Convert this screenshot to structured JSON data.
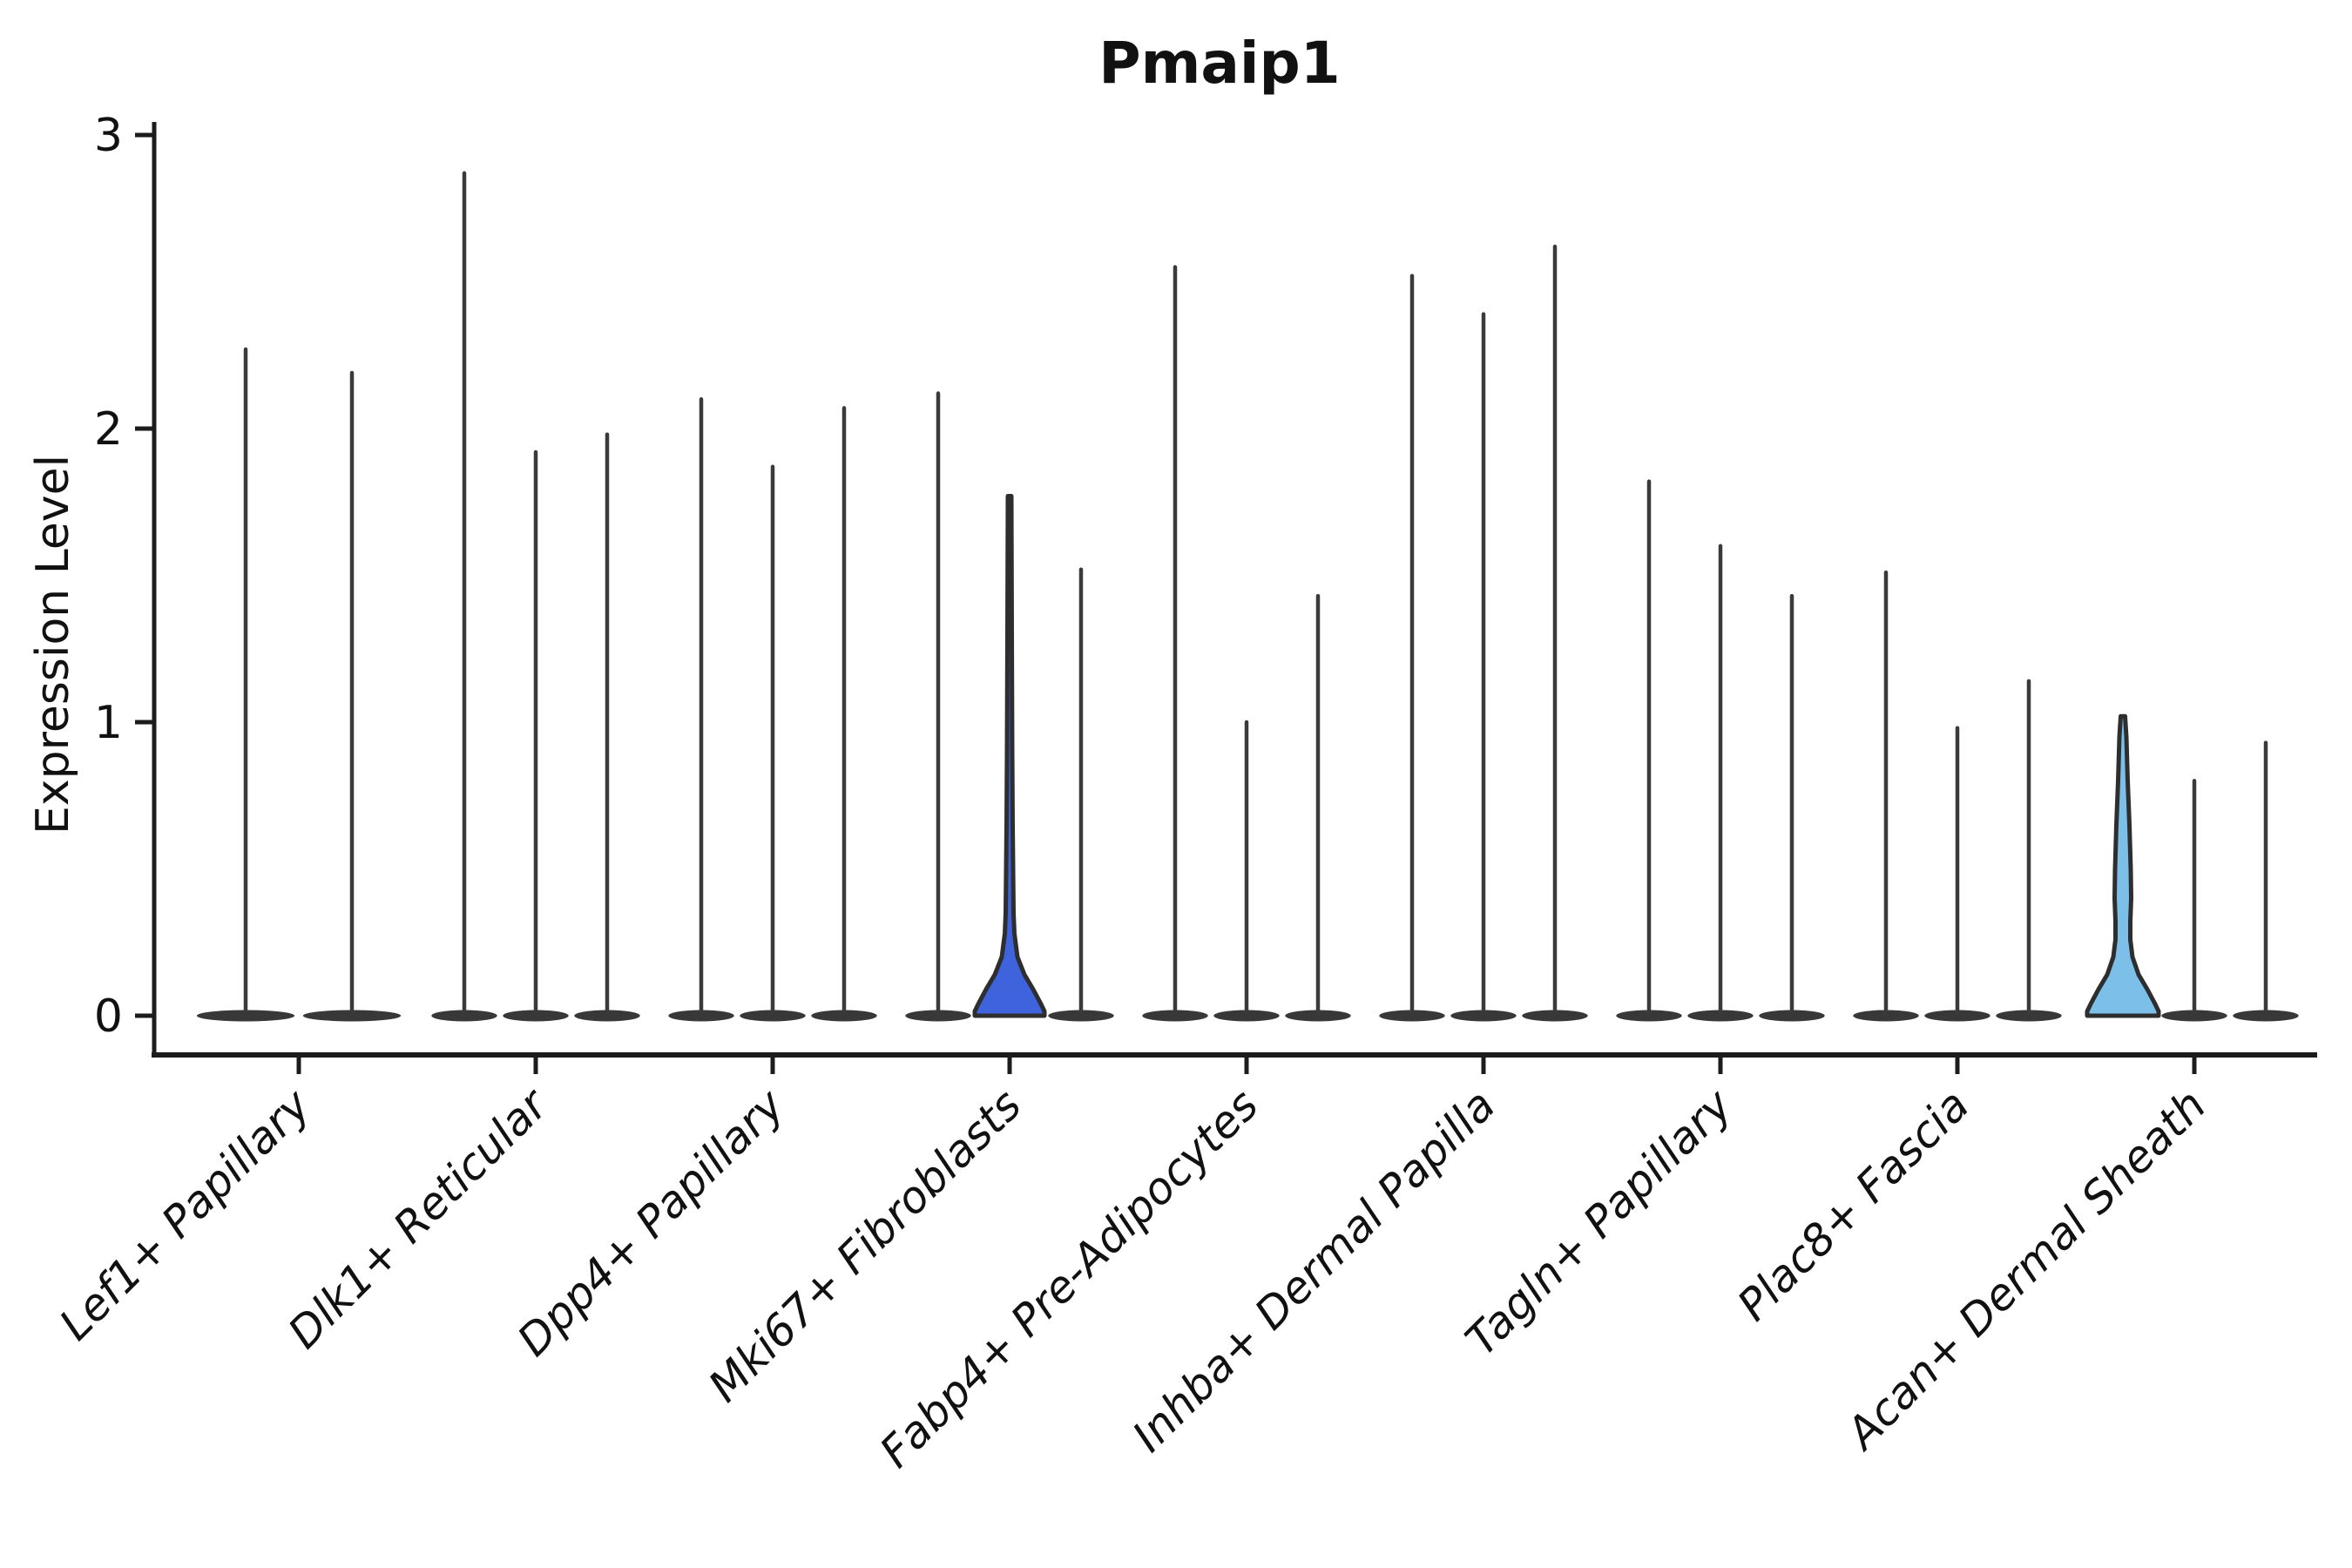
{
  "chart_data": {
    "type": "violin",
    "title": "Pmaip1",
    "xlabel": "",
    "ylabel": "Expression Level",
    "ylim": [
      0,
      3
    ],
    "yticks": [
      0,
      1,
      2,
      3
    ],
    "grid": false,
    "legend": "none",
    "categories": [
      "Lef1+ Papillary",
      "Dlk1+ Reticular",
      "Dpp4+ Papillary",
      "Mki67+ Fibroblasts",
      "Fabp4+ Pre-Adipocytes",
      "Inhba+ Dermal Papilla",
      "Tagln+ Papillary",
      "Plac8+ Fascia",
      "Acan+ Dermal Sheath"
    ],
    "groups": [
      {
        "label": "Lef1+ Papillary",
        "violins": [
          {
            "max": 2.27
          },
          {
            "max": 2.19
          }
        ]
      },
      {
        "label": "Dlk1+ Reticular",
        "violins": [
          {
            "max": 2.87
          },
          {
            "max": 1.92
          },
          {
            "max": 1.98
          }
        ]
      },
      {
        "label": "Dpp4+ Papillary",
        "violins": [
          {
            "max": 2.1
          },
          {
            "max": 1.87
          },
          {
            "max": 2.07
          }
        ]
      },
      {
        "label": "Mki67+ Fibroblasts",
        "violins": [
          {
            "max": 2.12
          },
          {
            "max": 1.77,
            "fill": "#3E63DC",
            "profile": [
              [
                1.77,
                2
              ],
              [
                1.3,
                2.5
              ],
              [
                0.9,
                3
              ],
              [
                0.65,
                3.5
              ],
              [
                0.5,
                4
              ],
              [
                0.35,
                4.5
              ],
              [
                0.28,
                5.5
              ],
              [
                0.2,
                9
              ],
              [
                0.14,
                17
              ],
              [
                0.09,
                27
              ],
              [
                0.04,
                36
              ],
              [
                0.015,
                40
              ],
              [
                0,
                40
              ]
            ]
          },
          {
            "max": 1.52
          }
        ]
      },
      {
        "label": "Fabp4+ Pre-Adipocytes",
        "violins": [
          {
            "max": 2.55
          },
          {
            "max": 1.0
          },
          {
            "max": 1.43
          }
        ]
      },
      {
        "label": "Inhba+ Dermal Papilla",
        "violins": [
          {
            "max": 2.52
          },
          {
            "max": 2.39
          },
          {
            "max": 2.62
          }
        ]
      },
      {
        "label": "Tagln+ Papillary",
        "violins": [
          {
            "max": 1.82
          },
          {
            "max": 1.6
          },
          {
            "max": 1.43
          }
        ]
      },
      {
        "label": "Plac8+ Fascia",
        "violins": [
          {
            "max": 1.51
          },
          {
            "max": 0.98
          },
          {
            "max": 1.14
          }
        ]
      },
      {
        "label": "Acan+ Dermal Sheath",
        "violins": [
          {
            "max": 1.02,
            "fill": "#7CC0EA",
            "profile": [
              [
                1.02,
                2.5
              ],
              [
                0.95,
                4
              ],
              [
                0.8,
                5.5
              ],
              [
                0.65,
                7.5
              ],
              [
                0.5,
                9
              ],
              [
                0.4,
                9.5
              ],
              [
                0.32,
                8.5
              ],
              [
                0.26,
                8.5
              ],
              [
                0.2,
                11
              ],
              [
                0.14,
                18
              ],
              [
                0.09,
                28
              ],
              [
                0.04,
                37
              ],
              [
                0.015,
                41
              ],
              [
                0,
                41
              ]
            ]
          },
          {
            "max": 0.8
          },
          {
            "max": 0.93
          }
        ]
      }
    ],
    "colors": {
      "violin_line": "#3a3a3a",
      "violin_base": "#383838",
      "spine": "#1c1c1c",
      "text": "#111111",
      "highlight_royal_blue": "#3E63DC",
      "highlight_sky_blue": "#7CC0EA"
    }
  }
}
